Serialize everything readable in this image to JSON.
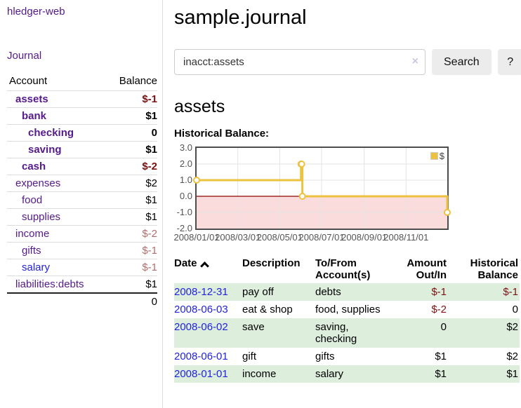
{
  "sidebar": {
    "brand": "hledger-web",
    "journal_link": "Journal",
    "accounts_table": {
      "headers": {
        "account": "Account",
        "balance": "Balance"
      },
      "rows": [
        {
          "name": "assets",
          "level": 1,
          "bold": true,
          "balance": "$-1",
          "balance_style": "neg-bold"
        },
        {
          "name": "bank",
          "level": 2,
          "bold": true,
          "balance": "$1",
          "balance_style": "bold"
        },
        {
          "name": "checking",
          "level": 3,
          "bold": true,
          "balance": "0",
          "balance_style": "bold"
        },
        {
          "name": "saving",
          "level": 3,
          "bold": true,
          "balance": "$1",
          "balance_style": "bold"
        },
        {
          "name": "cash",
          "level": 2,
          "bold": true,
          "balance": "$-2",
          "balance_style": "neg-bold"
        },
        {
          "name": "expenses",
          "level": 1,
          "bold": false,
          "balance": "$2",
          "balance_style": "normal"
        },
        {
          "name": "food",
          "level": 2,
          "bold": false,
          "balance": "$1",
          "balance_style": "normal"
        },
        {
          "name": "supplies",
          "level": 2,
          "bold": false,
          "balance": "$1",
          "balance_style": "normal"
        },
        {
          "name": "income",
          "level": 1,
          "bold": false,
          "balance": "$-2",
          "balance_style": "neg-faded"
        },
        {
          "name": "gifts",
          "level": 2,
          "bold": false,
          "balance": "$-1",
          "balance_style": "neg-faded"
        },
        {
          "name": "salary",
          "level": 2,
          "bold": false,
          "balance": "$-1",
          "balance_style": "neg-faded",
          "link_color": "blue"
        },
        {
          "name": "liabilities:debts",
          "level": 1,
          "bold": false,
          "balance": "$1",
          "balance_style": "normal"
        }
      ],
      "total": "0"
    }
  },
  "main": {
    "title": "sample.journal",
    "search": {
      "value": "inacct:assets",
      "clear_icon": "×",
      "search_button": "Search",
      "help_button": "?"
    },
    "account_heading": "assets",
    "chart_label": "Historical Balance:"
  },
  "chart_data": {
    "type": "line",
    "title": "Historical Balance:",
    "legend": [
      {
        "label": "$",
        "color": "#EDC240"
      }
    ],
    "ylim": [
      -2,
      3
    ],
    "y_ticks": [
      "3.0",
      "2.0",
      "1.0",
      "0.0",
      "-1.0",
      "-2.0"
    ],
    "y_tick_values": [
      3,
      2,
      1,
      0,
      -1,
      -2
    ],
    "x_range_days": 365,
    "x_ticks": [
      {
        "day": 0,
        "label": "2008/01/01"
      },
      {
        "day": 60,
        "label": "2008/03/01"
      },
      {
        "day": 121,
        "label": "2008/05/01"
      },
      {
        "day": 182,
        "label": "2008/07/01"
      },
      {
        "day": 244,
        "label": "2008/09/01"
      },
      {
        "day": 305,
        "label": "2008/11/01"
      }
    ],
    "series": [
      {
        "name": "$",
        "color": "#EDC240",
        "step": true,
        "points": [
          {
            "date": "2008-01-01",
            "day": 0,
            "value": 1
          },
          {
            "date": "2008-06-01",
            "day": 152,
            "value": 2
          },
          {
            "date": "2008-06-02",
            "day": 153,
            "value": 2
          },
          {
            "date": "2008-06-03",
            "day": 154,
            "value": 0
          },
          {
            "date": "2008-12-31",
            "day": 365,
            "value": -1
          }
        ]
      }
    ],
    "grid": true,
    "negative_fill": "#fbdcdc",
    "zero_line_color": "#8b0000",
    "grid_color": "#e3e3e3",
    "frame_color": "#4d4d4d"
  },
  "transactions": {
    "headers": {
      "date": "Date",
      "description": "Description",
      "accounts": "To/From Account(s)",
      "amount": "Amount Out/In",
      "balance": "Historical Balance"
    },
    "rows": [
      {
        "date": "2008-12-31",
        "description": "pay off",
        "accounts": "debts",
        "amount": "$-1",
        "amount_neg": true,
        "balance": "$-1",
        "balance_neg": true
      },
      {
        "date": "2008-06-03",
        "description": "eat & shop",
        "accounts": "food, supplies",
        "amount": "$-2",
        "amount_neg": true,
        "balance": "0",
        "balance_neg": false
      },
      {
        "date": "2008-06-02",
        "description": "save",
        "accounts": "saving, checking",
        "amount": "0",
        "amount_neg": false,
        "balance": "$2",
        "balance_neg": false
      },
      {
        "date": "2008-06-01",
        "description": "gift",
        "accounts": "gifts",
        "amount": "$1",
        "amount_neg": false,
        "balance": "$2",
        "balance_neg": false
      },
      {
        "date": "2008-01-01",
        "description": "income",
        "accounts": "salary",
        "amount": "$1",
        "amount_neg": false,
        "balance": "$1",
        "balance_neg": false
      }
    ]
  },
  "colors": {
    "link_purple": "#551a8b",
    "link_blue": "#2222dd",
    "negative_bold": "#7b1111",
    "negative_faded": "#b26e6e",
    "row_stripe_green": "#ddeedd",
    "chart_series_gold": "#EDC240",
    "chart_negative_fill": "#fbdcdc",
    "chart_zero_line": "#8b0000",
    "button_bg": "#ececec"
  }
}
